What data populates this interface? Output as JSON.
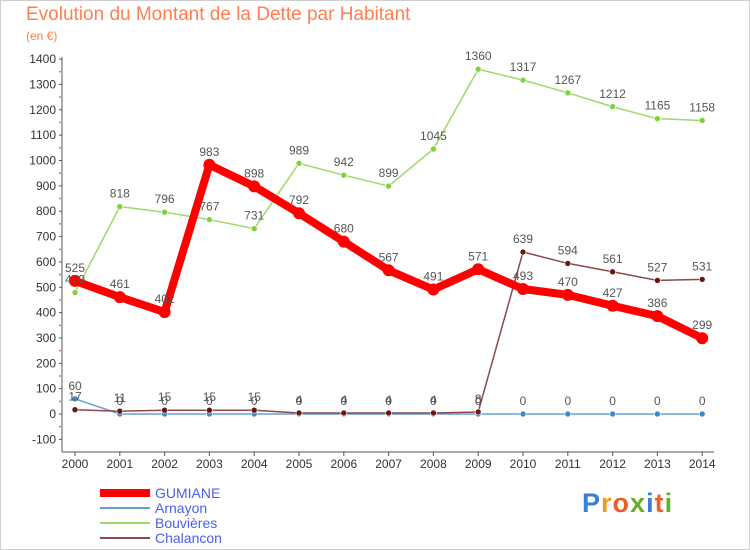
{
  "title": "Evolution du Montant de la Dette par Habitant",
  "unit": "(en €)",
  "logo": {
    "text": "Proxiti",
    "colors": [
      "#3a7fd5",
      "#e8a11b",
      "#e95e2b",
      "#6aaa2d",
      "#3a7fd5",
      "#e95e2b",
      "#6aaa2d"
    ]
  },
  "chart_data": {
    "type": "line",
    "title": "Evolution du Montant de la Dette par Habitant",
    "ylabel": "(en €)",
    "xlabel": "",
    "ylim": [
      -100,
      1400
    ],
    "yticks": [
      -100,
      0,
      100,
      200,
      300,
      400,
      500,
      600,
      700,
      800,
      900,
      1000,
      1100,
      1200,
      1300,
      1400
    ],
    "grid": false,
    "legend_position": "bottom-left",
    "x": [
      "2000",
      "2001",
      "2002",
      "2003",
      "2004",
      "2005",
      "2006",
      "2007",
      "2008",
      "2009",
      "2010",
      "2011",
      "2012",
      "2013",
      "2014"
    ],
    "series": [
      {
        "name": "Arnayon",
        "color": "#6a9ed0",
        "marker": "#3f87cf",
        "values": [
          60,
          0,
          0,
          0,
          0,
          0,
          0,
          0,
          0,
          0,
          0,
          0,
          0,
          0,
          0
        ],
        "labels": [
          "60",
          "0",
          "0",
          "0",
          "0",
          "0",
          "0",
          "0",
          "0",
          "0",
          "0",
          "0",
          "0",
          "0",
          "0"
        ]
      },
      {
        "name": "Chalancon",
        "color": "#8b4a4a",
        "marker": "#6b1414",
        "values": [
          17,
          11,
          15,
          15,
          15,
          4,
          4,
          4,
          4,
          8,
          639,
          594,
          561,
          527,
          531
        ],
        "labels": [
          "17",
          "11",
          "15",
          "15",
          "15",
          "4",
          "4",
          "4",
          "4",
          "8",
          "639",
          "594",
          "561",
          "527",
          "531"
        ]
      },
      {
        "name": "Bouvières",
        "color": "#9ed86a",
        "marker": "#7ed33c",
        "values": [
          479,
          818,
          796,
          767,
          731,
          989,
          942,
          899,
          1045,
          1360,
          1317,
          1267,
          1212,
          1165,
          1158
        ],
        "labels": [
          "479",
          "818",
          "796",
          "767",
          "731",
          "989",
          "942",
          "899",
          "1045",
          "1360",
          "1317",
          "1267",
          "1212",
          "1165",
          "1158"
        ]
      },
      {
        "name": "GUMIANE",
        "color": "#ff0000",
        "marker": "#ff0000",
        "values": [
          525,
          461,
          402,
          983,
          898,
          792,
          680,
          567,
          491,
          571,
          493,
          470,
          427,
          386,
          299
        ],
        "labels": [
          "525",
          "461",
          "402",
          "983",
          "898",
          "792",
          "680",
          "567",
          "491",
          "571",
          "493",
          "470",
          "427",
          "386",
          "299"
        ]
      }
    ],
    "legend": [
      {
        "name": "GUMIANE",
        "color": "#ff0000"
      },
      {
        "name": "Arnayon",
        "color": "#6a9ed0"
      },
      {
        "name": "Bouvières",
        "color": "#9ed86a"
      },
      {
        "name": "Chalancon",
        "color": "#8b4a4a"
      }
    ]
  }
}
